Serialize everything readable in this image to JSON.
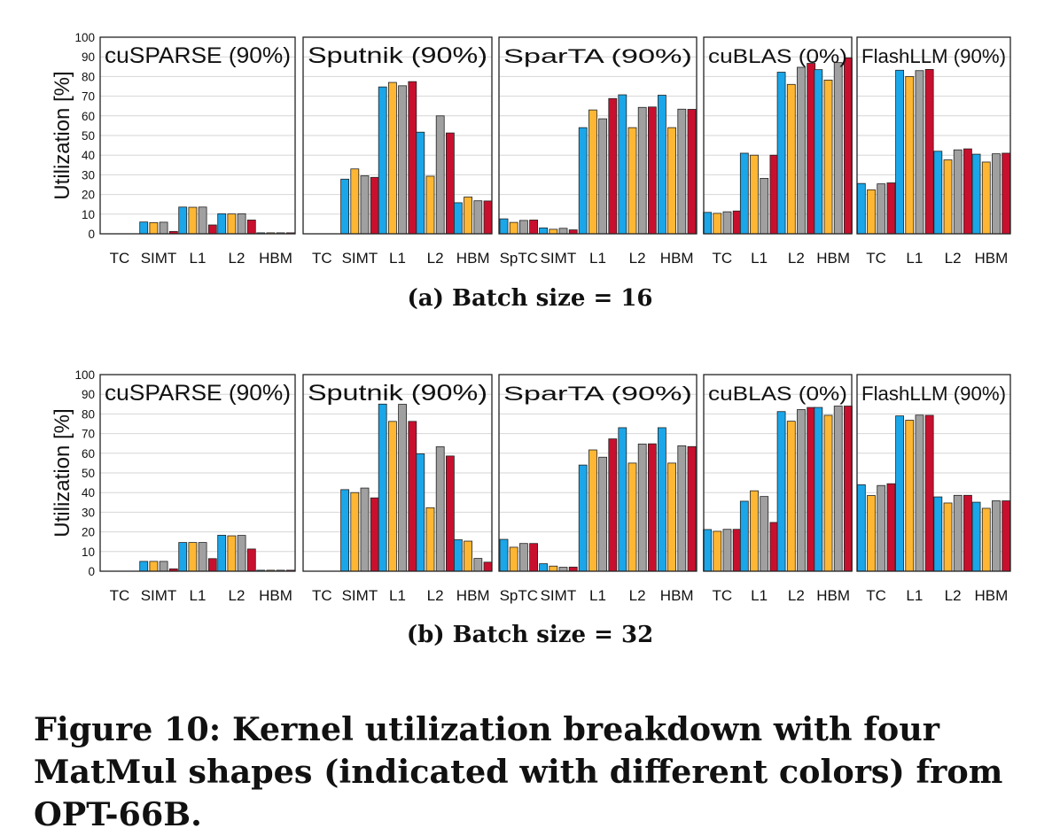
{
  "figure": {
    "caption": "Figure 10: Kernel utilization breakdown with four MatMul shapes (indicated with different colors) from OPT-66B."
  },
  "colors": [
    "#1aa6e8",
    "#ffb733",
    "#a0a0a0",
    "#c8102e"
  ],
  "chart_data": [
    {
      "type": "bar",
      "caption": "(a) Batch size = 16",
      "ylabel": "Utilization [%]",
      "ylim": [
        0,
        100
      ],
      "yticks": [
        0,
        10,
        20,
        30,
        40,
        50,
        60,
        70,
        80,
        90,
        100
      ],
      "grid": true,
      "panels": [
        {
          "title": "cuSPARSE (90%)",
          "categories": [
            "TC",
            "SIMT",
            "L1",
            "L2",
            "HBM"
          ],
          "values": [
            [
              0,
              0,
              0,
              0
            ],
            [
              6,
              5.7,
              5.9,
              1.2
            ],
            [
              13.6,
              13.5,
              13.6,
              4.5
            ],
            [
              10.2,
              10.1,
              10.2,
              7
            ],
            [
              0.5,
              0.5,
              0.5,
              0.5
            ]
          ]
        },
        {
          "title": "Sputnik (90%)",
          "categories": [
            "TC",
            "SIMT",
            "L1",
            "L2",
            "HBM"
          ],
          "values": [
            [
              0,
              0,
              0,
              0
            ],
            [
              27.8,
              33,
              29.5,
              28.7
            ],
            [
              74.7,
              77,
              75.3,
              77.4
            ],
            [
              51.7,
              29.3,
              60,
              51.3
            ],
            [
              15.8,
              18.7,
              16.8,
              16.7
            ]
          ]
        },
        {
          "title": "SparTA (90%)",
          "categories": [
            "SpTC",
            "SIMT",
            "L1",
            "L2",
            "HBM"
          ],
          "values": [
            [
              7.6,
              5.8,
              6.8,
              7
            ],
            [
              3,
              2.3,
              2.8,
              2
            ],
            [
              54,
              63,
              58.5,
              68.8
            ],
            [
              70.7,
              54,
              64.3,
              64.5
            ],
            [
              70.5,
              54,
              63.4,
              63.3
            ]
          ]
        },
        {
          "title": "cuBLAS (0%)",
          "categories": [
            "TC",
            "L1",
            "L2",
            "HBM"
          ],
          "values": [
            [
              10.9,
              10.4,
              11.2,
              11.6
            ],
            [
              41,
              40,
              28.2,
              40
            ],
            [
              82.2,
              76,
              84.7,
              86.7
            ],
            [
              83.5,
              78.2,
              87.1,
              89.5
            ]
          ]
        },
        {
          "title": "FlashLLM (90%)",
          "categories": [
            "TC",
            "L1",
            "L2",
            "HBM"
          ],
          "values": [
            [
              25.6,
              22.4,
              25.4,
              25.9
            ],
            [
              83.2,
              80,
              83,
              83.6
            ],
            [
              42,
              37.6,
              42.7,
              43.2
            ],
            [
              40.5,
              36.5,
              40.7,
              41
            ]
          ]
        }
      ]
    },
    {
      "type": "bar",
      "caption": "(b) Batch size = 32",
      "ylabel": "Utilization [%]",
      "ylim": [
        0,
        100
      ],
      "yticks": [
        0,
        10,
        20,
        30,
        40,
        50,
        60,
        70,
        80,
        90,
        100
      ],
      "grid": true,
      "panels": [
        {
          "title": "cuSPARSE (90%)",
          "categories": [
            "TC",
            "SIMT",
            "L1",
            "L2",
            "HBM"
          ],
          "values": [
            [
              0,
              0,
              0,
              0
            ],
            [
              5,
              5,
              5,
              1.2
            ],
            [
              14.6,
              14.6,
              14.6,
              6.4
            ],
            [
              18.3,
              18,
              18.2,
              11.3
            ],
            [
              0.5,
              0.5,
              0.5,
              0.5
            ]
          ]
        },
        {
          "title": "Sputnik (90%)",
          "categories": [
            "TC",
            "SIMT",
            "L1",
            "L2",
            "HBM"
          ],
          "values": [
            [
              0,
              0,
              0,
              0
            ],
            [
              41.5,
              40,
              42.3,
              37.3
            ],
            [
              85,
              76.2,
              84.9,
              76.2
            ],
            [
              59.7,
              32.3,
              63.3,
              58.6
            ],
            [
              16,
              15.3,
              6.5,
              4.6
            ]
          ]
        },
        {
          "title": "SparTA (90%)",
          "categories": [
            "SpTC",
            "SIMT",
            "L1",
            "L2",
            "HBM"
          ],
          "values": [
            [
              16.2,
              12.2,
              14.1,
              14.1
            ],
            [
              3.8,
              2.6,
              2,
              2.1
            ],
            [
              54,
              61.7,
              58,
              67.3
            ],
            [
              73,
              55,
              64.7,
              64.8
            ],
            [
              73,
              55,
              63.8,
              63.4
            ]
          ]
        },
        {
          "title": "cuBLAS (0%)",
          "categories": [
            "TC",
            "L1",
            "L2",
            "HBM"
          ],
          "values": [
            [
              21.2,
              20.3,
              21.3,
              21.3
            ],
            [
              35.6,
              40.9,
              38,
              24.8
            ],
            [
              81.2,
              76.3,
              82.2,
              83.3
            ],
            [
              83.3,
              79.3,
              84,
              84
            ]
          ]
        },
        {
          "title": "FlashLLM (90%)",
          "categories": [
            "TC",
            "L1",
            "L2",
            "HBM"
          ],
          "values": [
            [
              44,
              38.5,
              43.6,
              44.5
            ],
            [
              79,
              76.8,
              79.4,
              79.3
            ],
            [
              37.8,
              34.7,
              38.6,
              38.6
            ],
            [
              35.1,
              32,
              35.8,
              35.8
            ]
          ]
        }
      ]
    }
  ]
}
